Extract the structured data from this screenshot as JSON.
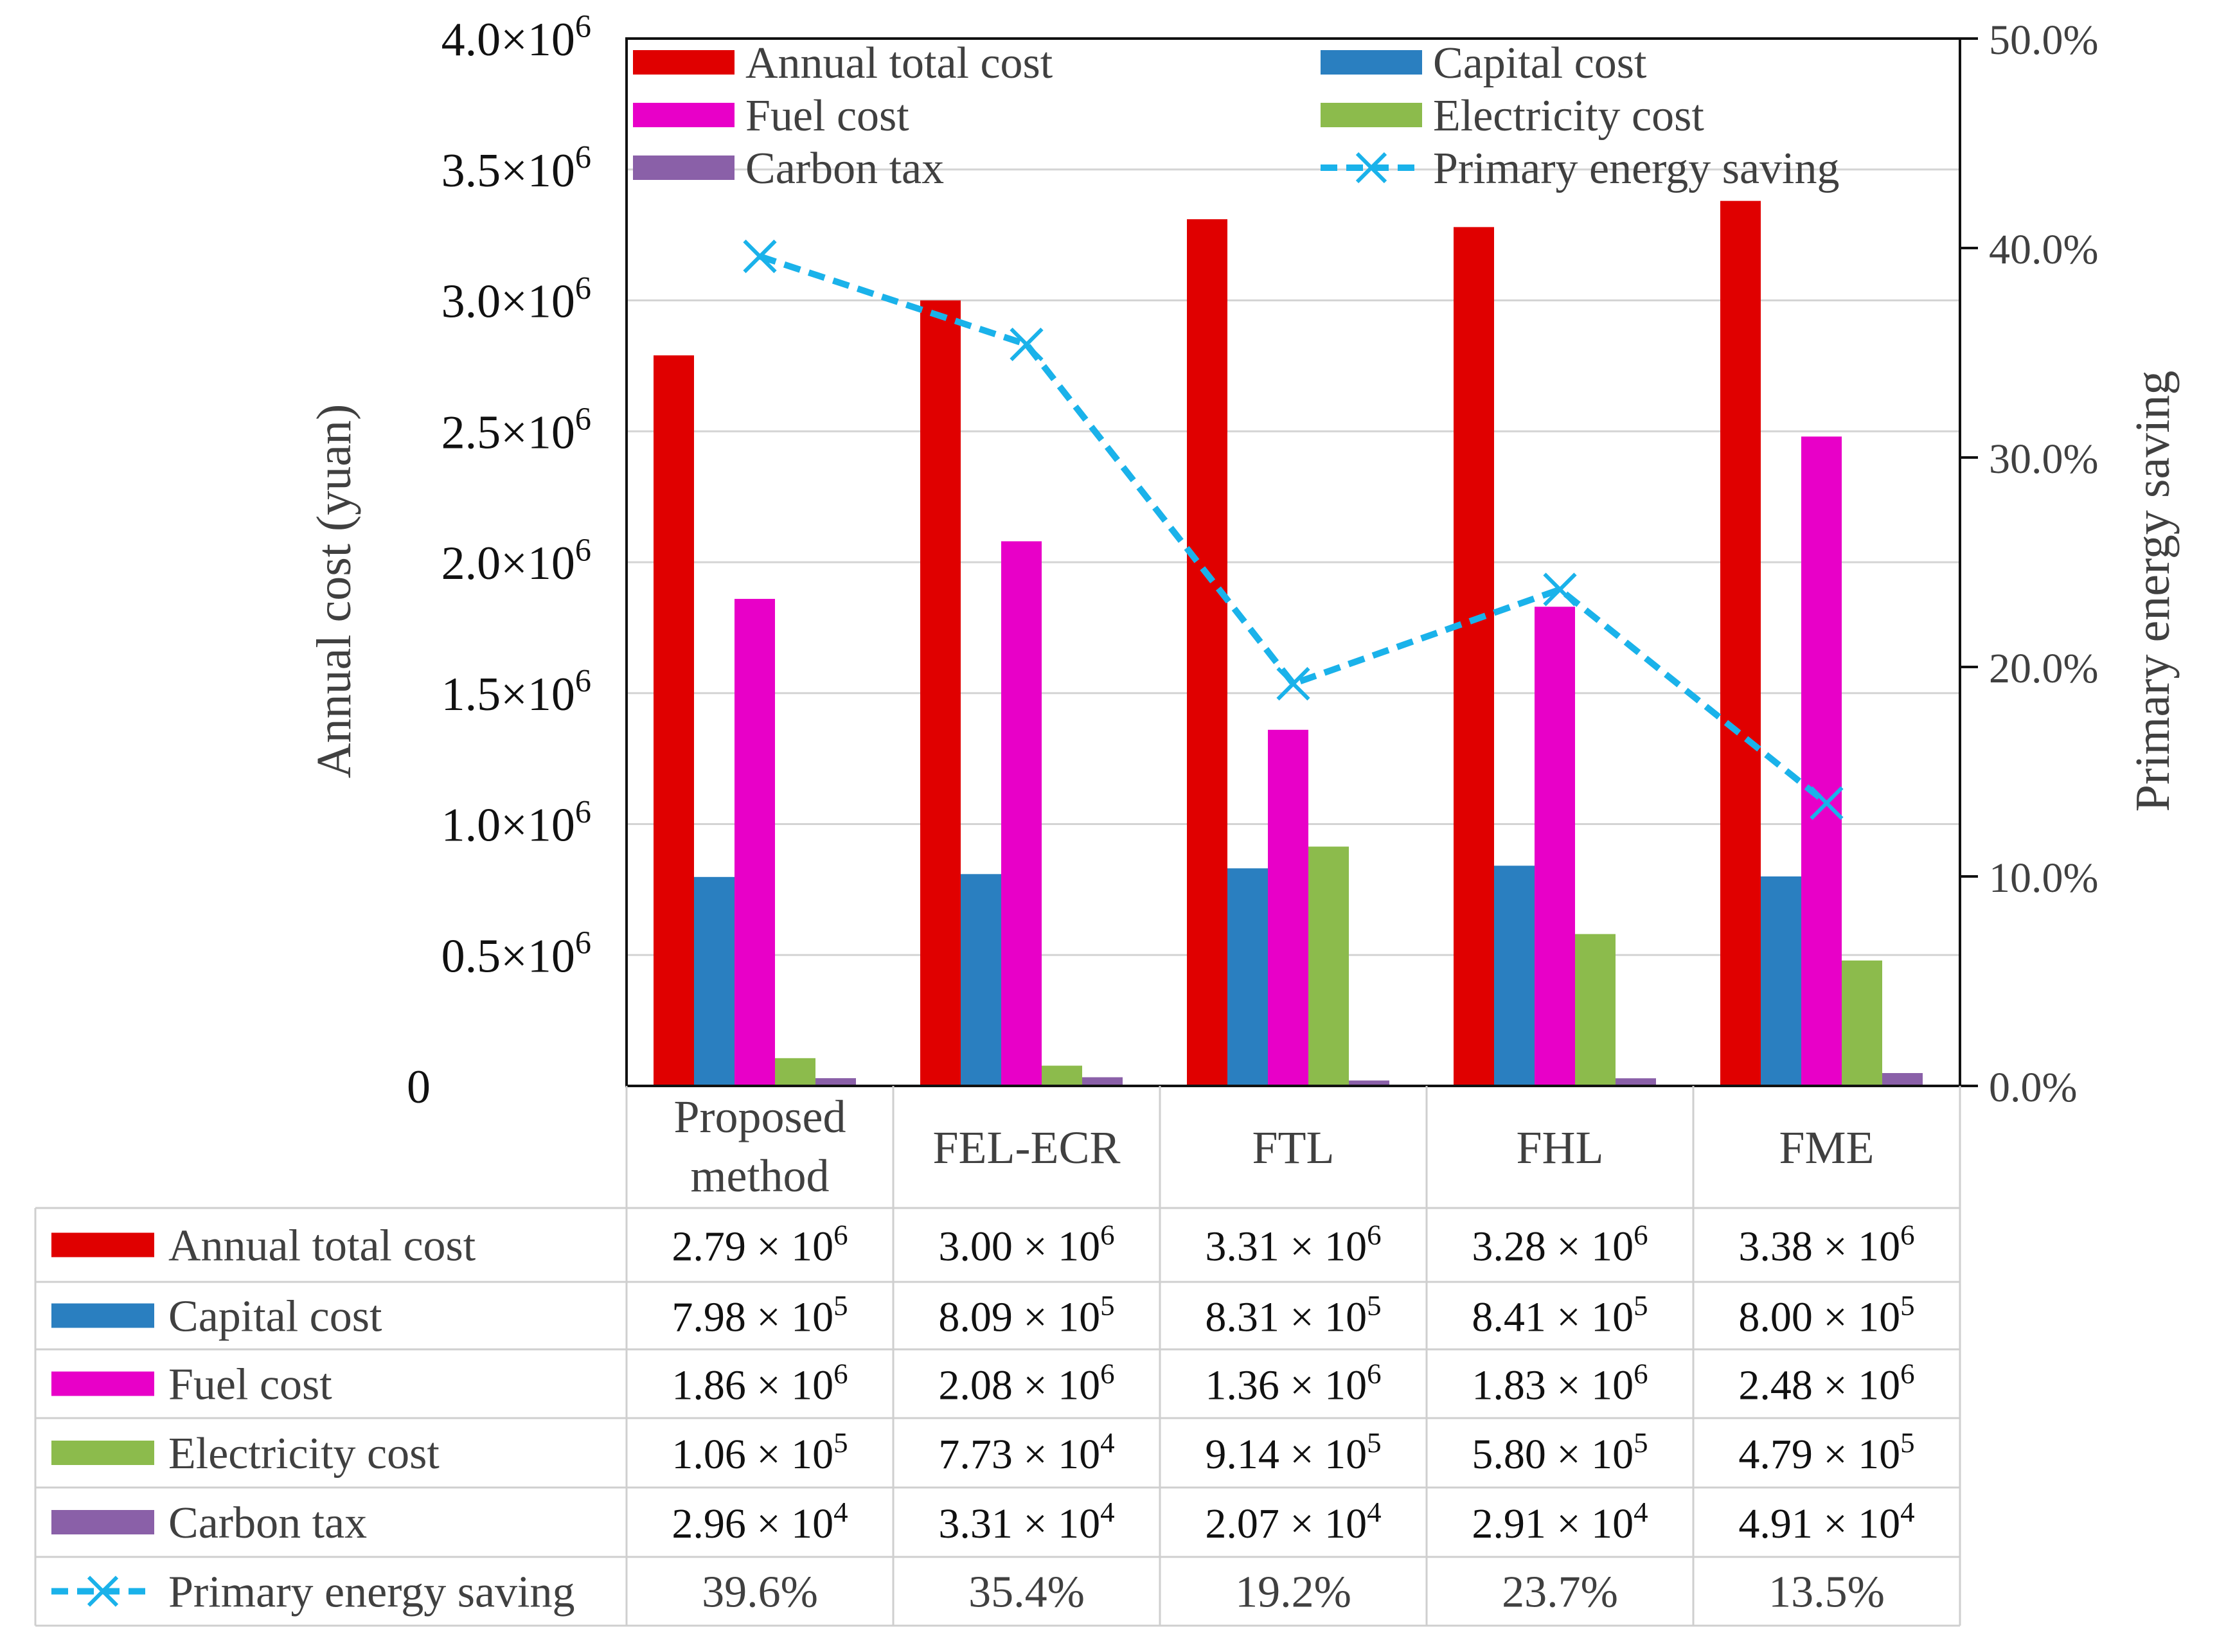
{
  "chart_data": {
    "type": "bar",
    "categories": [
      "Proposed method",
      "FEL-ECR",
      "FTL",
      "FHL",
      "FME"
    ],
    "category_lines": [
      [
        "Proposed",
        "method"
      ],
      [
        "FEL-ECR"
      ],
      [
        "FTL"
      ],
      [
        "FHL"
      ],
      [
        "FME"
      ]
    ],
    "ylabel": "Annual cost (yuan)",
    "y2label": "Primary energy saving",
    "ylim": [
      0,
      4000000
    ],
    "y2lim": [
      0,
      0.5
    ],
    "yticks": [
      {
        "value": 0,
        "mant": "0",
        "exp": ""
      },
      {
        "value": 500000,
        "mant": "0.5×10",
        "exp": "6"
      },
      {
        "value": 1000000,
        "mant": "1.0×10",
        "exp": "6"
      },
      {
        "value": 1500000,
        "mant": "1.5×10",
        "exp": "6"
      },
      {
        "value": 2000000,
        "mant": "2.0×10",
        "exp": "6"
      },
      {
        "value": 2500000,
        "mant": "2.5×10",
        "exp": "6"
      },
      {
        "value": 3000000,
        "mant": "3.0×10",
        "exp": "6"
      },
      {
        "value": 3500000,
        "mant": "3.5×10",
        "exp": "6"
      },
      {
        "value": 4000000,
        "mant": "4.0×10",
        "exp": "6"
      }
    ],
    "y2ticks": [
      {
        "value": 0.0,
        "label": "0.0%"
      },
      {
        "value": 0.1,
        "label": "10.0%"
      },
      {
        "value": 0.2,
        "label": "20.0%"
      },
      {
        "value": 0.3,
        "label": "30.0%"
      },
      {
        "value": 0.4,
        "label": "40.0%"
      },
      {
        "value": 0.5,
        "label": "50.0%"
      }
    ],
    "grid": true,
    "legend_position": "top",
    "series": [
      {
        "name": "Annual total cost",
        "kind": "bar",
        "color": "#e00000",
        "values": [
          2790000,
          3000000,
          3310000,
          3280000,
          3380000
        ],
        "table": [
          [
            "2.79 × 10",
            "6"
          ],
          [
            "3.00 × 10",
            "6"
          ],
          [
            "3.31 × 10",
            "6"
          ],
          [
            "3.28 × 10",
            "6"
          ],
          [
            "3.38 × 10",
            "6"
          ]
        ]
      },
      {
        "name": "Capital cost",
        "kind": "bar",
        "color": "#2a7fc0",
        "values": [
          798000,
          809000,
          831000,
          841000,
          800000
        ],
        "table": [
          [
            "7.98 × 10",
            "5"
          ],
          [
            "8.09 × 10",
            "5"
          ],
          [
            "8.31 × 10",
            "5"
          ],
          [
            "8.41 × 10",
            "5"
          ],
          [
            "8.00 × 10",
            "5"
          ]
        ]
      },
      {
        "name": "Fuel cost",
        "kind": "bar",
        "color": "#e800c8",
        "values": [
          1860000,
          2080000,
          1360000,
          1830000,
          2480000
        ],
        "table": [
          [
            "1.86 × 10",
            "6"
          ],
          [
            "2.08 × 10",
            "6"
          ],
          [
            "1.36 × 10",
            "6"
          ],
          [
            "1.83 × 10",
            "6"
          ],
          [
            "2.48 × 10",
            "6"
          ]
        ]
      },
      {
        "name": "Electricity cost",
        "kind": "bar",
        "color": "#8cbb4c",
        "values": [
          106000,
          77300,
          914000,
          580000,
          479000
        ],
        "table": [
          [
            "1.06 × 10",
            "5"
          ],
          [
            "7.73 × 10",
            "4"
          ],
          [
            "9.14 × 10",
            "5"
          ],
          [
            "5.80 × 10",
            "5"
          ],
          [
            "4.79 × 10",
            "5"
          ]
        ]
      },
      {
        "name": "Carbon tax",
        "kind": "bar",
        "color": "#8a60a8",
        "values": [
          29600,
          33100,
          20700,
          29100,
          49100
        ],
        "table": [
          [
            "2.96 × 10",
            "4"
          ],
          [
            "3.31 × 10",
            "4"
          ],
          [
            "2.07 × 10",
            "4"
          ],
          [
            "2.91 × 10",
            "4"
          ],
          [
            "4.91 × 10",
            "4"
          ]
        ]
      },
      {
        "name": "Primary energy saving",
        "kind": "line",
        "axis": "right",
        "color": "#1ab2ea",
        "values": [
          0.396,
          0.354,
          0.192,
          0.237,
          0.135
        ],
        "table": [
          [
            "39.6%",
            ""
          ],
          [
            "35.4%",
            ""
          ],
          [
            "19.2%",
            ""
          ],
          [
            "23.7%",
            ""
          ],
          [
            "13.5%",
            ""
          ]
        ]
      }
    ]
  }
}
